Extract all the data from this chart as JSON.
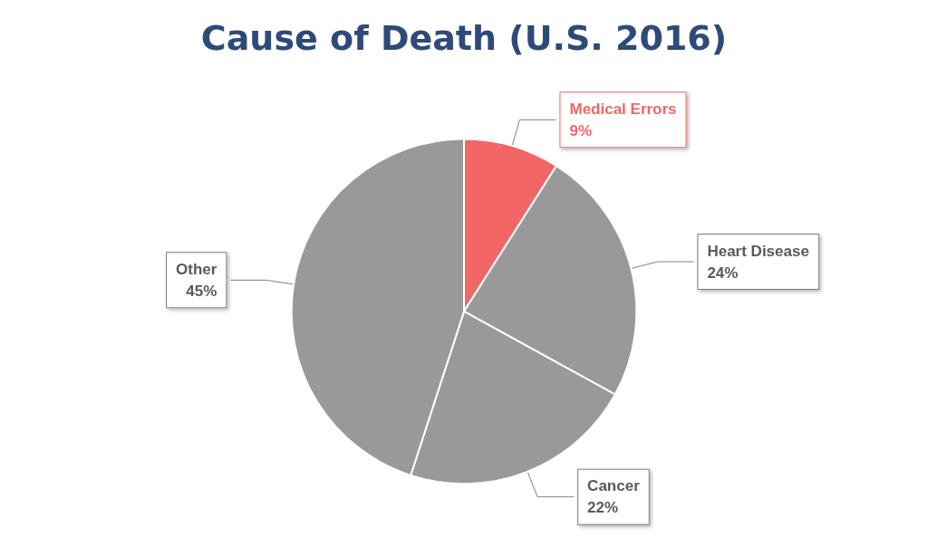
{
  "chart_data": {
    "type": "pie",
    "title": "Cause of Death (U.S. 2016)",
    "categories": [
      "Medical Errors",
      "Heart Disease",
      "Cancer",
      "Other"
    ],
    "values": [
      9,
      24,
      22,
      45
    ],
    "value_labels": [
      "9%",
      "24%",
      "22%",
      "45%"
    ],
    "colors": [
      "#f26666",
      "#999999",
      "#999999",
      "#999999"
    ],
    "legend": false
  }
}
